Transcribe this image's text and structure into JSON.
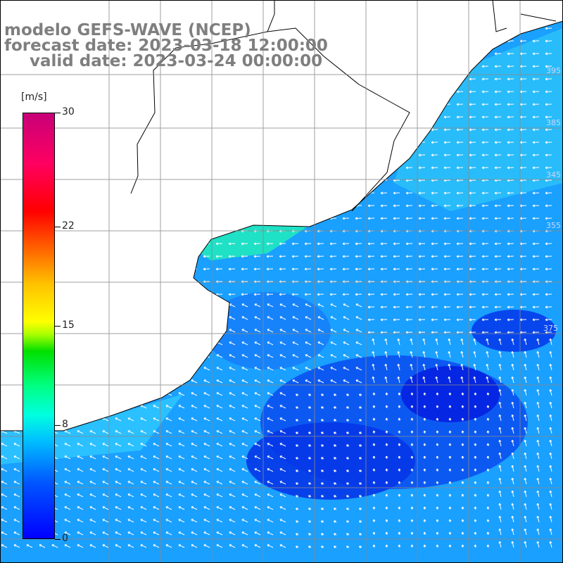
{
  "header": {
    "model": "modelo GEFS-WAVE (NCEP)",
    "forecast": "forecast date: 2023-03-18 12:00:00",
    "valid": "valid date: 2023-03-24 00:00:00"
  },
  "colorbar": {
    "unit": "[m/s]",
    "ticks": [
      "0",
      "8",
      "15",
      "22",
      "30"
    ],
    "min": 0,
    "max": 30
  },
  "map": {
    "ocean_contour_labels": [
      "395",
      "385",
      "345",
      "355",
      "375"
    ],
    "colors": {
      "land": "#ffffff",
      "coast": "#000000",
      "grid": "#888888",
      "vector": "#ffffff"
    }
  }
}
